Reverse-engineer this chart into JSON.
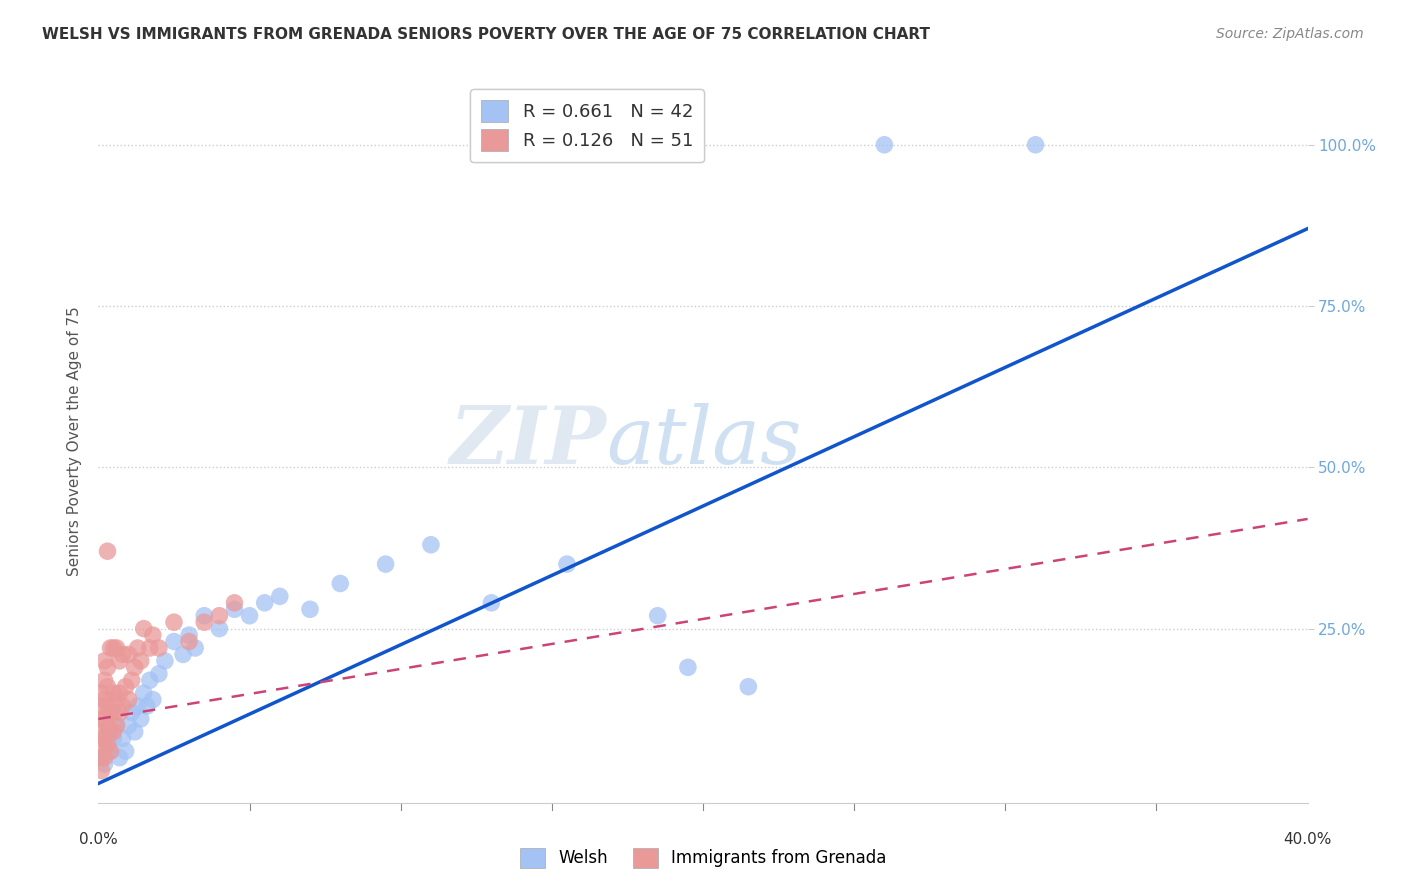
{
  "title": "WELSH VS IMMIGRANTS FROM GRENADA SENIORS POVERTY OVER THE AGE OF 75 CORRELATION CHART",
  "source": "Source: ZipAtlas.com",
  "ylabel": "Seniors Poverty Over the Age of 75",
  "watermark": "ZIPatlas",
  "xlim": [
    0.0,
    0.4
  ],
  "ylim": [
    -0.02,
    1.1
  ],
  "xticks": [
    0.0,
    0.05,
    0.1,
    0.15,
    0.2,
    0.25,
    0.3,
    0.35,
    0.4
  ],
  "yticks": [
    0.25,
    0.5,
    0.75,
    1.0
  ],
  "welsh_R": 0.661,
  "welsh_N": 42,
  "grenada_R": 0.126,
  "grenada_N": 51,
  "welsh_color": "#a4c2f4",
  "grenada_color": "#ea9999",
  "welsh_line_color": "#1155cc",
  "grenada_line_color": "#cc4477",
  "background_color": "#ffffff",
  "grid_color": "#cccccc",
  "welsh_line_x": [
    0.0,
    0.4
  ],
  "welsh_line_y": [
    0.01,
    0.87
  ],
  "grenada_line_x": [
    0.0,
    0.4
  ],
  "grenada_line_y": [
    0.11,
    0.42
  ],
  "welsh_x": [
    0.001,
    0.002,
    0.003,
    0.003,
    0.004,
    0.005,
    0.006,
    0.007,
    0.008,
    0.009,
    0.01,
    0.011,
    0.012,
    0.013,
    0.014,
    0.015,
    0.016,
    0.017,
    0.018,
    0.02,
    0.022,
    0.025,
    0.028,
    0.03,
    0.032,
    0.035,
    0.04,
    0.045,
    0.05,
    0.055,
    0.06,
    0.07,
    0.08,
    0.095,
    0.11,
    0.13,
    0.155,
    0.185,
    0.195,
    0.215,
    0.26,
    0.31
  ],
  "welsh_y": [
    0.05,
    0.04,
    0.07,
    0.09,
    0.06,
    0.08,
    0.1,
    0.05,
    0.08,
    0.06,
    0.1,
    0.12,
    0.09,
    0.13,
    0.11,
    0.15,
    0.13,
    0.17,
    0.14,
    0.18,
    0.2,
    0.23,
    0.21,
    0.24,
    0.22,
    0.27,
    0.25,
    0.28,
    0.27,
    0.29,
    0.3,
    0.28,
    0.32,
    0.35,
    0.38,
    0.29,
    0.35,
    0.27,
    0.19,
    0.16,
    1.0,
    1.0
  ],
  "grenada_x": [
    0.001,
    0.001,
    0.001,
    0.001,
    0.001,
    0.001,
    0.001,
    0.002,
    0.002,
    0.002,
    0.002,
    0.002,
    0.002,
    0.003,
    0.003,
    0.003,
    0.003,
    0.003,
    0.004,
    0.004,
    0.004,
    0.004,
    0.005,
    0.005,
    0.005,
    0.005,
    0.006,
    0.006,
    0.006,
    0.007,
    0.007,
    0.007,
    0.008,
    0.008,
    0.009,
    0.01,
    0.01,
    0.011,
    0.012,
    0.013,
    0.014,
    0.015,
    0.017,
    0.018,
    0.02,
    0.025,
    0.03,
    0.035,
    0.04,
    0.045,
    0.003
  ],
  "grenada_y": [
    0.03,
    0.05,
    0.07,
    0.09,
    0.11,
    0.13,
    0.15,
    0.05,
    0.08,
    0.11,
    0.14,
    0.17,
    0.2,
    0.07,
    0.1,
    0.13,
    0.16,
    0.19,
    0.06,
    0.09,
    0.12,
    0.22,
    0.09,
    0.12,
    0.15,
    0.22,
    0.1,
    0.14,
    0.22,
    0.12,
    0.15,
    0.2,
    0.13,
    0.21,
    0.16,
    0.14,
    0.21,
    0.17,
    0.19,
    0.22,
    0.2,
    0.25,
    0.22,
    0.24,
    0.22,
    0.26,
    0.23,
    0.26,
    0.27,
    0.29,
    0.37
  ]
}
